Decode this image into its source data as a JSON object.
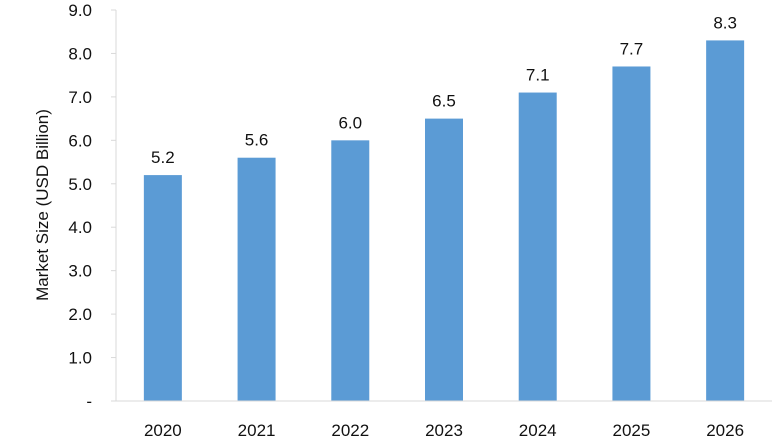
{
  "chart_data": {
    "type": "bar",
    "categories": [
      "2020",
      "2021",
      "2022",
      "2023",
      "2024",
      "2025",
      "2026"
    ],
    "values": [
      5.2,
      5.6,
      6.0,
      6.5,
      7.1,
      7.7,
      8.3
    ],
    "value_labels": [
      "5.2",
      "5.6",
      "6.0",
      "6.5",
      "7.1",
      "7.7",
      "8.3"
    ],
    "title": "",
    "xlabel": "",
    "ylabel": "Market Size (USD Billion)",
    "ylim": [
      0,
      9
    ],
    "y_ticks": [
      0,
      1,
      2,
      3,
      4,
      5,
      6,
      7,
      8,
      9
    ],
    "y_tick_labels": [
      "-",
      "1.0",
      "2.0",
      "3.0",
      "4.0",
      "5.0",
      "6.0",
      "7.0",
      "8.0",
      "9.0"
    ],
    "grid": false,
    "legend": "none",
    "bar_color": "#5b9bd5",
    "axis_color": "#d9d9d9"
  }
}
